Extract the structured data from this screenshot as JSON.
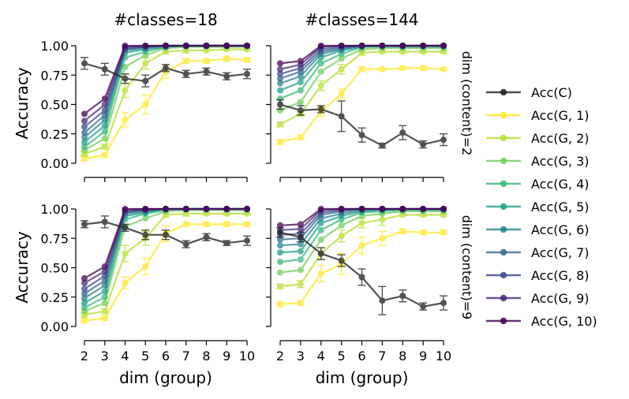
{
  "figure": {
    "col_titles": [
      "#classes=18",
      "#classes=144"
    ],
    "row_titles": [
      "dim (content)=2",
      "dim (content)=9"
    ],
    "ylabel": "Accuracy",
    "xlabel": "dim (group)"
  },
  "legend": {
    "entries": [
      {
        "label": "Acc(C)",
        "color": "#222222"
      },
      {
        "label": "Acc(G, 1)",
        "color": "#fde725"
      },
      {
        "label": "Acc(G, 2)",
        "color": "#b5de2b"
      },
      {
        "label": "Acc(G, 3)",
        "color": "#6ece58"
      },
      {
        "label": "Acc(G, 4)",
        "color": "#35b779"
      },
      {
        "label": "Acc(G, 5)",
        "color": "#1f9e89"
      },
      {
        "label": "Acc(G, 6)",
        "color": "#26828e"
      },
      {
        "label": "Acc(G, 7)",
        "color": "#31688e"
      },
      {
        "label": "Acc(G, 8)",
        "color": "#3e4989"
      },
      {
        "label": "Acc(G, 9)",
        "color": "#482878"
      },
      {
        "label": "Acc(G, 10)",
        "color": "#440154"
      }
    ]
  },
  "chart_data": [
    {
      "type": "line",
      "title": "#classes=18",
      "row_label": "",
      "xlabel": "",
      "ylabel": "Accuracy",
      "x": [
        2,
        3,
        4,
        5,
        6,
        7,
        8,
        9,
        10
      ],
      "xticks": [
        "2",
        "3",
        "4",
        "5",
        "6",
        "7",
        "8",
        "9",
        "10"
      ],
      "yticks": [
        "0.00",
        "0.25",
        "0.50",
        "0.75",
        "1.00"
      ],
      "ylim": [
        0,
        1
      ],
      "series": [
        {
          "name": "Acc(C)",
          "values": [
            0.85,
            0.8,
            0.72,
            0.7,
            0.81,
            0.76,
            0.78,
            0.74,
            0.76
          ],
          "err": [
            0.05,
            0.05,
            0.04,
            0.05,
            0.03,
            0.03,
            0.03,
            0.03,
            0.04
          ]
        },
        {
          "name": "Acc(G, 1)",
          "values": [
            0.04,
            0.07,
            0.37,
            0.5,
            0.78,
            0.87,
            0.87,
            0.89,
            0.88
          ],
          "err": [
            0.02,
            0.02,
            0.06,
            0.08,
            0.06,
            0.02,
            0.02,
            0.02,
            0.02
          ]
        },
        {
          "name": "Acc(G, 2)",
          "values": [
            0.08,
            0.14,
            0.62,
            0.85,
            0.95,
            0.96,
            0.96,
            0.97,
            0.97
          ],
          "err": [
            0.02,
            0.02,
            0.06,
            0.05,
            0.02,
            0.02,
            0.01,
            0.01,
            0.01
          ]
        },
        {
          "name": "Acc(G, 3)",
          "values": [
            0.11,
            0.21,
            0.82,
            0.92,
            0.98,
            0.99,
            0.99,
            0.99,
            0.99
          ]
        },
        {
          "name": "Acc(G, 4)",
          "values": [
            0.14,
            0.27,
            0.9,
            0.95,
            0.99,
            1.0,
            1.0,
            1.0,
            1.0
          ]
        },
        {
          "name": "Acc(G, 5)",
          "values": [
            0.18,
            0.32,
            0.94,
            0.97,
            0.99,
            1.0,
            1.0,
            1.0,
            1.0
          ]
        },
        {
          "name": "Acc(G, 6)",
          "values": [
            0.22,
            0.37,
            0.96,
            0.98,
            1.0,
            1.0,
            1.0,
            1.0,
            1.0
          ]
        },
        {
          "name": "Acc(G, 7)",
          "values": [
            0.26,
            0.41,
            0.97,
            0.99,
            1.0,
            1.0,
            1.0,
            1.0,
            1.0
          ]
        },
        {
          "name": "Acc(G, 8)",
          "values": [
            0.31,
            0.45,
            0.98,
            0.99,
            1.0,
            1.0,
            1.0,
            1.0,
            1.0
          ]
        },
        {
          "name": "Acc(G, 9)",
          "values": [
            0.36,
            0.5,
            0.99,
            1.0,
            1.0,
            1.0,
            1.0,
            1.0,
            1.0
          ]
        },
        {
          "name": "Acc(G, 10)",
          "values": [
            0.42,
            0.55,
            1.0,
            1.0,
            1.0,
            1.0,
            1.0,
            1.0,
            1.0
          ]
        }
      ]
    },
    {
      "type": "line",
      "title": "#classes=144",
      "row_label": "dim (content)=2",
      "xlabel": "",
      "ylabel": "",
      "x": [
        2,
        3,
        4,
        5,
        6,
        7,
        8,
        9,
        10
      ],
      "xticks": [
        "2",
        "3",
        "4",
        "5",
        "6",
        "7",
        "8",
        "9",
        "10"
      ],
      "yticks": [],
      "ylim": [
        0,
        1
      ],
      "series": [
        {
          "name": "Acc(C)",
          "values": [
            0.5,
            0.45,
            0.46,
            0.4,
            0.24,
            0.15,
            0.26,
            0.16,
            0.2
          ],
          "err": [
            0.04,
            0.04,
            0.03,
            0.13,
            0.06,
            0.02,
            0.06,
            0.03,
            0.05
          ]
        },
        {
          "name": "Acc(G, 1)",
          "values": [
            0.18,
            0.22,
            0.44,
            0.59,
            0.8,
            0.8,
            0.81,
            0.81,
            0.8
          ],
          "err": [
            0.02,
            0.02,
            0.04,
            0.04,
            0.02,
            0.01,
            0.01,
            0.02,
            0.01
          ]
        },
        {
          "name": "Acc(G, 2)",
          "values": [
            0.33,
            0.42,
            0.66,
            0.8,
            0.94,
            0.95,
            0.95,
            0.95,
            0.95
          ],
          "err": [
            0.02,
            0.02,
            0.04,
            0.04,
            0.02,
            0.01,
            0.01,
            0.01,
            0.01
          ]
        },
        {
          "name": "Acc(G, 3)",
          "values": [
            0.45,
            0.52,
            0.78,
            0.89,
            0.97,
            0.98,
            0.98,
            0.98,
            0.98
          ]
        },
        {
          "name": "Acc(G, 4)",
          "values": [
            0.55,
            0.62,
            0.85,
            0.93,
            0.99,
            0.99,
            0.99,
            0.99,
            0.99
          ]
        },
        {
          "name": "Acc(G, 5)",
          "values": [
            0.62,
            0.69,
            0.9,
            0.96,
            0.99,
            1.0,
            1.0,
            1.0,
            1.0
          ]
        },
        {
          "name": "Acc(G, 6)",
          "values": [
            0.68,
            0.74,
            0.93,
            0.97,
            1.0,
            1.0,
            1.0,
            1.0,
            1.0
          ]
        },
        {
          "name": "Acc(G, 7)",
          "values": [
            0.72,
            0.78,
            0.95,
            0.98,
            1.0,
            1.0,
            1.0,
            1.0,
            1.0
          ]
        },
        {
          "name": "Acc(G, 8)",
          "values": [
            0.76,
            0.81,
            0.97,
            0.99,
            1.0,
            1.0,
            1.0,
            1.0,
            1.0
          ]
        },
        {
          "name": "Acc(G, 9)",
          "values": [
            0.8,
            0.84,
            0.99,
            1.0,
            1.0,
            1.0,
            1.0,
            1.0,
            1.0
          ]
        },
        {
          "name": "Acc(G, 10)",
          "values": [
            0.85,
            0.87,
            1.0,
            1.0,
            1.0,
            1.0,
            1.0,
            1.0,
            1.0
          ]
        }
      ]
    },
    {
      "type": "line",
      "title": "",
      "row_label": "",
      "xlabel": "dim (group)",
      "ylabel": "Accuracy",
      "x": [
        2,
        3,
        4,
        5,
        6,
        7,
        8,
        9,
        10
      ],
      "xticks": [
        "2",
        "3",
        "4",
        "5",
        "6",
        "7",
        "8",
        "9",
        "10"
      ],
      "yticks": [
        "0.00",
        "0.25",
        "0.50",
        "0.75",
        "1.00"
      ],
      "ylim": [
        0,
        1
      ],
      "series": [
        {
          "name": "Acc(C)",
          "values": [
            0.87,
            0.89,
            0.84,
            0.78,
            0.78,
            0.7,
            0.76,
            0.71,
            0.73
          ],
          "err": [
            0.03,
            0.05,
            0.03,
            0.04,
            0.04,
            0.03,
            0.03,
            0.02,
            0.04
          ]
        },
        {
          "name": "Acc(G, 1)",
          "values": [
            0.05,
            0.07,
            0.37,
            0.51,
            0.79,
            0.87,
            0.87,
            0.87,
            0.87
          ],
          "err": [
            0.02,
            0.02,
            0.05,
            0.07,
            0.07,
            0.02,
            0.02,
            0.02,
            0.02
          ]
        },
        {
          "name": "Acc(G, 2)",
          "values": [
            0.1,
            0.13,
            0.62,
            0.75,
            0.95,
            0.96,
            0.96,
            0.96,
            0.96
          ],
          "err": [
            0.02,
            0.02,
            0.07,
            0.06,
            0.02,
            0.02,
            0.01,
            0.01,
            0.01
          ]
        },
        {
          "name": "Acc(G, 3)",
          "values": [
            0.13,
            0.2,
            0.85,
            0.92,
            0.98,
            0.99,
            0.99,
            0.99,
            0.99
          ]
        },
        {
          "name": "Acc(G, 4)",
          "values": [
            0.16,
            0.25,
            0.91,
            0.96,
            0.99,
            1.0,
            1.0,
            1.0,
            1.0
          ]
        },
        {
          "name": "Acc(G, 5)",
          "values": [
            0.2,
            0.3,
            0.94,
            0.97,
            1.0,
            1.0,
            1.0,
            1.0,
            1.0
          ]
        },
        {
          "name": "Acc(G, 6)",
          "values": [
            0.24,
            0.35,
            0.96,
            0.98,
            1.0,
            1.0,
            1.0,
            1.0,
            1.0
          ]
        },
        {
          "name": "Acc(G, 7)",
          "values": [
            0.28,
            0.39,
            0.97,
            0.99,
            1.0,
            1.0,
            1.0,
            1.0,
            1.0
          ]
        },
        {
          "name": "Acc(G, 8)",
          "values": [
            0.32,
            0.43,
            0.98,
            0.99,
            1.0,
            1.0,
            1.0,
            1.0,
            1.0
          ]
        },
        {
          "name": "Acc(G, 9)",
          "values": [
            0.37,
            0.47,
            0.99,
            1.0,
            1.0,
            1.0,
            1.0,
            1.0,
            1.0
          ]
        },
        {
          "name": "Acc(G, 10)",
          "values": [
            0.41,
            0.51,
            1.0,
            1.0,
            1.0,
            1.0,
            1.0,
            1.0,
            1.0
          ]
        }
      ]
    },
    {
      "type": "line",
      "title": "",
      "row_label": "dim (content)=9",
      "xlabel": "dim (group)",
      "ylabel": "",
      "x": [
        2,
        3,
        4,
        5,
        6,
        7,
        8,
        9,
        10
      ],
      "xticks": [
        "2",
        "3",
        "4",
        "5",
        "6",
        "7",
        "8",
        "9",
        "10"
      ],
      "yticks": [],
      "ylim": [
        0,
        1
      ],
      "series": [
        {
          "name": "Acc(C)",
          "values": [
            0.8,
            0.76,
            0.62,
            0.56,
            0.42,
            0.22,
            0.26,
            0.17,
            0.2
          ],
          "err": [
            0.04,
            0.04,
            0.05,
            0.05,
            0.07,
            0.12,
            0.05,
            0.03,
            0.06
          ]
        },
        {
          "name": "Acc(G, 1)",
          "values": [
            0.19,
            0.2,
            0.45,
            0.53,
            0.69,
            0.75,
            0.81,
            0.8,
            0.8
          ],
          "err": [
            0.02,
            0.02,
            0.07,
            0.09,
            0.07,
            0.06,
            0.02,
            0.02,
            0.02
          ]
        },
        {
          "name": "Acc(G, 2)",
          "values": [
            0.34,
            0.36,
            0.62,
            0.77,
            0.88,
            0.91,
            0.95,
            0.95,
            0.95
          ],
          "err": [
            0.02,
            0.03,
            0.05,
            0.05,
            0.04,
            0.05,
            0.01,
            0.01,
            0.01
          ]
        },
        {
          "name": "Acc(G, 3)",
          "values": [
            0.46,
            0.48,
            0.74,
            0.86,
            0.94,
            0.96,
            0.98,
            0.98,
            0.98
          ]
        },
        {
          "name": "Acc(G, 4)",
          "values": [
            0.55,
            0.57,
            0.82,
            0.91,
            0.97,
            0.98,
            0.99,
            0.99,
            0.99
          ]
        },
        {
          "name": "Acc(G, 5)",
          "values": [
            0.63,
            0.64,
            0.88,
            0.94,
            0.98,
            0.99,
            1.0,
            1.0,
            1.0
          ]
        },
        {
          "name": "Acc(G, 6)",
          "values": [
            0.69,
            0.7,
            0.92,
            0.96,
            0.99,
            1.0,
            1.0,
            1.0,
            1.0
          ]
        },
        {
          "name": "Acc(G, 7)",
          "values": [
            0.74,
            0.75,
            0.95,
            0.98,
            1.0,
            1.0,
            1.0,
            1.0,
            1.0
          ]
        },
        {
          "name": "Acc(G, 8)",
          "values": [
            0.78,
            0.79,
            0.97,
            0.99,
            1.0,
            1.0,
            1.0,
            1.0,
            1.0
          ]
        },
        {
          "name": "Acc(G, 9)",
          "values": [
            0.82,
            0.83,
            0.99,
            1.0,
            1.0,
            1.0,
            1.0,
            1.0,
            1.0
          ]
        },
        {
          "name": "Acc(G, 10)",
          "values": [
            0.86,
            0.87,
            1.0,
            1.0,
            1.0,
            1.0,
            1.0,
            1.0,
            1.0
          ]
        }
      ]
    }
  ]
}
